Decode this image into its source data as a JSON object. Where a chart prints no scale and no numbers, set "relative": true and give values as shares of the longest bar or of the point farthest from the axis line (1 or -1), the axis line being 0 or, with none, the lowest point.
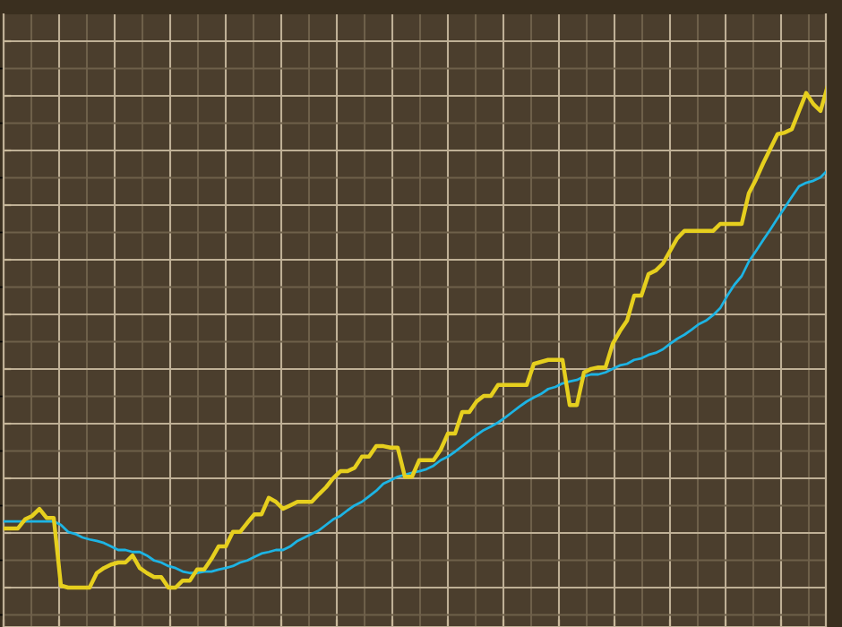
{
  "chart_data": {
    "type": "line",
    "relative": true,
    "grid": true,
    "marker": "none",
    "line_style": "solid",
    "categories": [
      null,
      null,
      null,
      null,
      null,
      null,
      null,
      null,
      null,
      null,
      null,
      null,
      null,
      null,
      null,
      null,
      null,
      null,
      null,
      null,
      null,
      null,
      null,
      null,
      null,
      null,
      null,
      null,
      null,
      null,
      null,
      null,
      null,
      null,
      null,
      null,
      null,
      null,
      null,
      null,
      null,
      null,
      null,
      null,
      null,
      null,
      null,
      null,
      null,
      null,
      null,
      null,
      null,
      null,
      null,
      null,
      null,
      null,
      null,
      null,
      null,
      null,
      null,
      null,
      null,
      null,
      null,
      null,
      null,
      null,
      null,
      null,
      null,
      null,
      null,
      null,
      null,
      null,
      null,
      null,
      null,
      null,
      null,
      null,
      null,
      null,
      null,
      null,
      null,
      null,
      null,
      null,
      null,
      null,
      null,
      null,
      null,
      null,
      null,
      null,
      null,
      null,
      null,
      null,
      null,
      null,
      null,
      null,
      null,
      null,
      null,
      null,
      null,
      null,
      null,
      null
    ],
    "series": [
      {
        "color": "#e6cf1e",
        "values": [
          0.118,
          0.118,
          0.118,
          0.136,
          0.143,
          0.157,
          0.139,
          0.139,
          0.004,
          0,
          0,
          0,
          0,
          0.029,
          0.039,
          0.046,
          0.05,
          0.05,
          0.064,
          0.039,
          0.029,
          0.021,
          0.021,
          0,
          0,
          0.014,
          0.014,
          0.036,
          0.036,
          0.057,
          0.082,
          0.082,
          0.111,
          0.111,
          0.129,
          0.146,
          0.146,
          0.179,
          0.171,
          0.157,
          0.164,
          0.171,
          0.171,
          0.171,
          0.186,
          0.2,
          0.218,
          0.232,
          0.232,
          0.239,
          0.261,
          0.261,
          0.282,
          0.282,
          0.279,
          0.279,
          0.221,
          0.221,
          0.254,
          0.254,
          0.254,
          0.275,
          0.307,
          0.307,
          0.35,
          0.35,
          0.371,
          0.382,
          0.382,
          0.404,
          0.404,
          0.404,
          0.404,
          0.404,
          0.446,
          0.45,
          0.454,
          0.454,
          0.454,
          0.364,
          0.364,
          0.429,
          0.436,
          0.439,
          0.439,
          0.486,
          0.511,
          0.532,
          0.582,
          0.582,
          0.625,
          0.632,
          0.646,
          0.671,
          0.696,
          0.711,
          0.711,
          0.711,
          0.711,
          0.711,
          0.725,
          0.725,
          0.725,
          0.725,
          0.786,
          0.814,
          0.846,
          0.875,
          0.904,
          0.907,
          0.914,
          0.95,
          0.986,
          0.964,
          0.95,
          1
        ]
      },
      {
        "color": "#1db4e4",
        "values": [
          0.132,
          0.132,
          0.132,
          0.132,
          0.132,
          0.132,
          0.132,
          0.132,
          0.125,
          0.111,
          0.107,
          0.1,
          0.096,
          0.093,
          0.089,
          0.082,
          0.075,
          0.075,
          0.071,
          0.071,
          0.064,
          0.054,
          0.05,
          0.043,
          0.039,
          0.032,
          0.029,
          0.029,
          0.032,
          0.032,
          0.036,
          0.039,
          0.043,
          0.05,
          0.054,
          0.061,
          0.068,
          0.071,
          0.075,
          0.075,
          0.082,
          0.093,
          0.1,
          0.107,
          0.114,
          0.125,
          0.136,
          0.143,
          0.154,
          0.164,
          0.171,
          0.182,
          0.193,
          0.207,
          0.214,
          0.221,
          0.225,
          0.229,
          0.232,
          0.236,
          0.243,
          0.254,
          0.261,
          0.271,
          0.282,
          0.293,
          0.304,
          0.314,
          0.321,
          0.329,
          0.339,
          0.35,
          0.361,
          0.371,
          0.379,
          0.386,
          0.396,
          0.4,
          0.407,
          0.411,
          0.414,
          0.421,
          0.425,
          0.425,
          0.429,
          0.436,
          0.443,
          0.446,
          0.454,
          0.457,
          0.464,
          0.468,
          0.475,
          0.486,
          0.496,
          0.504,
          0.514,
          0.525,
          0.532,
          0.543,
          0.557,
          0.582,
          0.604,
          0.621,
          0.65,
          0.671,
          0.693,
          0.714,
          0.736,
          0.757,
          0.779,
          0.8,
          0.807,
          0.811,
          0.818,
          0.832
        ]
      }
    ]
  }
}
